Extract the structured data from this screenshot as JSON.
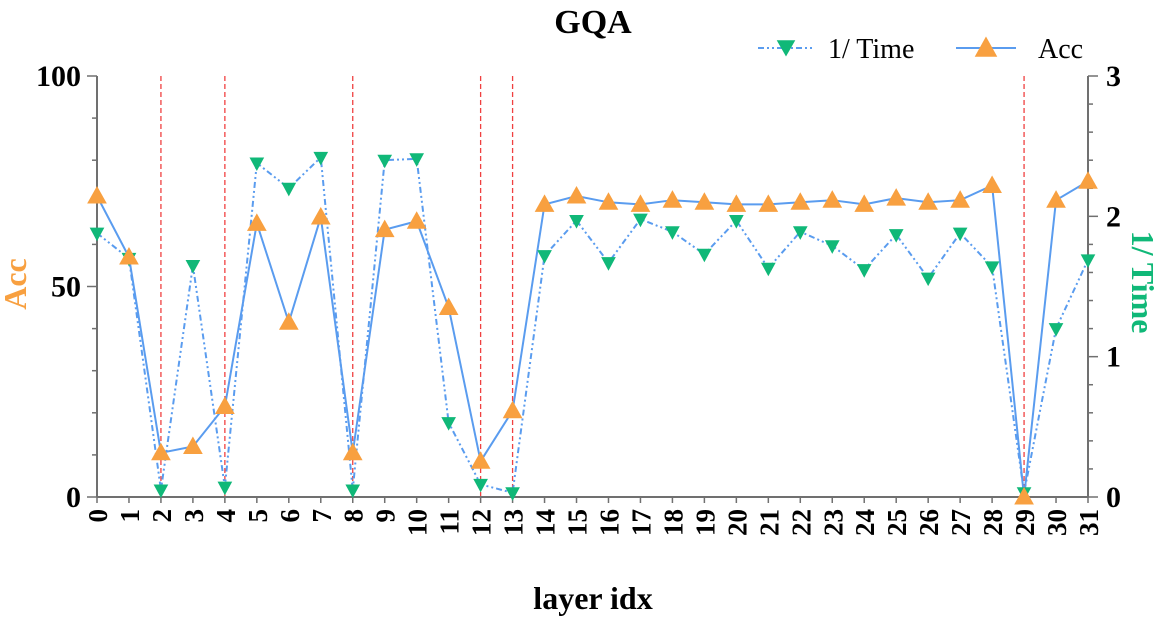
{
  "chart_data": {
    "type": "line",
    "title": "GQA",
    "xlabel": "layer idx",
    "ylabel_left": "Acc",
    "ylabel_right": "1/ Time",
    "x": [
      0,
      1,
      2,
      3,
      4,
      5,
      6,
      7,
      8,
      9,
      10,
      11,
      12,
      13,
      14,
      15,
      16,
      17,
      18,
      19,
      20,
      21,
      22,
      23,
      24,
      25,
      26,
      27,
      28,
      29,
      30,
      31
    ],
    "x_tick_labels": [
      "0",
      "1",
      "2",
      "3",
      "4",
      "5",
      "6",
      "7",
      "8",
      "9",
      "10",
      "11",
      "12",
      "13",
      "14",
      "15",
      "16",
      "17",
      "18",
      "19",
      "20",
      "21",
      "22",
      "23",
      "24",
      "25",
      "26",
      "27",
      "28",
      "29",
      "30",
      "31"
    ],
    "ylim_left": [
      0,
      100
    ],
    "yticks_left": [
      "0",
      "50",
      "100"
    ],
    "ylim_right": [
      0,
      3
    ],
    "yticks_right": [
      "0",
      "1",
      "2",
      "3"
    ],
    "highlight_layers": [
      2,
      4,
      8,
      12,
      13,
      29
    ],
    "legend_position": "top-right",
    "series": [
      {
        "name": "1/ Time",
        "axis": "right",
        "marker": "triangle-down",
        "line_style": "dash-dot-dot",
        "values": [
          1.88,
          1.7,
          0.05,
          1.65,
          0.07,
          2.38,
          2.2,
          2.42,
          0.05,
          2.4,
          2.41,
          0.53,
          0.09,
          0.03,
          1.72,
          1.97,
          1.67,
          1.98,
          1.89,
          1.73,
          1.97,
          1.63,
          1.89,
          1.79,
          1.62,
          1.87,
          1.56,
          1.88,
          1.64,
          0.03,
          1.2,
          1.69
        ]
      },
      {
        "name": "Acc",
        "axis": "left",
        "marker": "triangle-up",
        "line_style": "solid",
        "values": [
          71.5,
          57.0,
          10.5,
          12.0,
          21.5,
          65.0,
          41.5,
          66.5,
          10.5,
          63.5,
          65.5,
          45.0,
          8.5,
          20.5,
          69.5,
          71.5,
          70.0,
          69.5,
          70.5,
          70.0,
          69.5,
          69.5,
          70.0,
          70.5,
          69.5,
          71.0,
          70.0,
          70.5,
          74.0,
          0.0,
          70.5,
          75.0
        ]
      }
    ]
  },
  "colors": {
    "acc": "#F8A040",
    "time_marker": "#10B878",
    "line": "#5A9CEF",
    "highlight": "#F04040",
    "axis": "#707070"
  }
}
